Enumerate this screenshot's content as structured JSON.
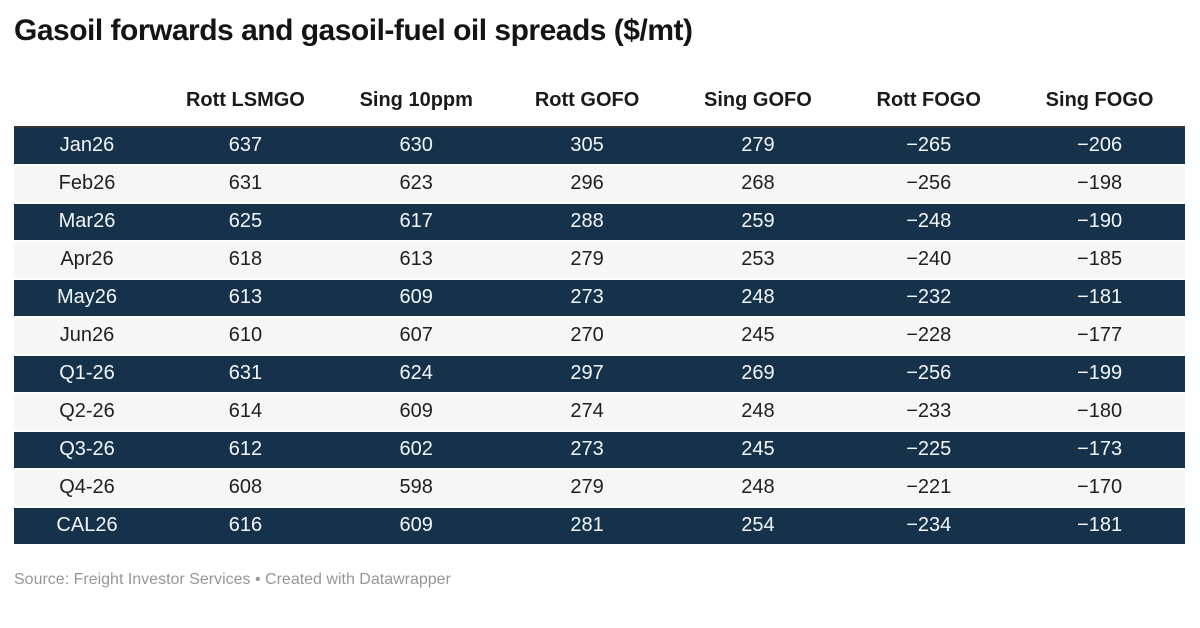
{
  "title": "Gasoil forwards and gasoil-fuel oil spreads ($/mt)",
  "table": {
    "columns": [
      "",
      "Rott LSMGO",
      "Sing 10ppm",
      "Rott GOFO",
      "Sing GOFO",
      "Rott FOGO",
      "Sing FOGO"
    ],
    "rows": [
      {
        "label": "Jan26",
        "values": [
          "637",
          "630",
          "305",
          "279",
          "−265",
          "−206"
        ]
      },
      {
        "label": "Feb26",
        "values": [
          "631",
          "623",
          "296",
          "268",
          "−256",
          "−198"
        ]
      },
      {
        "label": "Mar26",
        "values": [
          "625",
          "617",
          "288",
          "259",
          "−248",
          "−190"
        ]
      },
      {
        "label": "Apr26",
        "values": [
          "618",
          "613",
          "279",
          "253",
          "−240",
          "−185"
        ]
      },
      {
        "label": "May26",
        "values": [
          "613",
          "609",
          "273",
          "248",
          "−232",
          "−181"
        ]
      },
      {
        "label": "Jun26",
        "values": [
          "610",
          "607",
          "270",
          "245",
          "−228",
          "−177"
        ]
      },
      {
        "label": "Q1-26",
        "values": [
          "631",
          "624",
          "297",
          "269",
          "−256",
          "−199"
        ]
      },
      {
        "label": "Q2-26",
        "values": [
          "614",
          "609",
          "274",
          "248",
          "−233",
          "−180"
        ]
      },
      {
        "label": "Q3-26",
        "values": [
          "612",
          "602",
          "273",
          "245",
          "−225",
          "−173"
        ]
      },
      {
        "label": "Q4-26",
        "values": [
          "608",
          "598",
          "279",
          "248",
          "−221",
          "−170"
        ]
      },
      {
        "label": "CAL26",
        "values": [
          "616",
          "609",
          "281",
          "254",
          "−234",
          "−181"
        ]
      }
    ]
  },
  "footer": {
    "text": "Source: Freight Investor Services • Created with Datawrapper"
  },
  "colors": {
    "dark_row_bg": "#16324a",
    "light_row_bg": "#f6f6f6",
    "dark_row_text": "#f2f6f9",
    "light_row_text": "#1f1f1f",
    "heading_text": "#141414",
    "footer_text": "#979797",
    "top_rule": "#333333",
    "row_separator": "#ffffff"
  },
  "chart_data": {
    "type": "table",
    "title": "Gasoil forwards and gasoil-fuel oil spreads ($/mt)",
    "columns": [
      "",
      "Rott LSMGO",
      "Sing 10ppm",
      "Rott GOFO",
      "Sing GOFO",
      "Rott FOGO",
      "Sing FOGO"
    ],
    "rows": [
      [
        "Jan26",
        637,
        630,
        305,
        279,
        -265,
        -206
      ],
      [
        "Feb26",
        631,
        623,
        296,
        268,
        -256,
        -198
      ],
      [
        "Mar26",
        625,
        617,
        288,
        259,
        -248,
        -190
      ],
      [
        "Apr26",
        618,
        613,
        279,
        253,
        -240,
        -185
      ],
      [
        "May26",
        613,
        609,
        273,
        248,
        -232,
        -181
      ],
      [
        "Jun26",
        610,
        607,
        270,
        245,
        -228,
        -177
      ],
      [
        "Q1-26",
        631,
        624,
        297,
        269,
        -256,
        -199
      ],
      [
        "Q2-26",
        614,
        609,
        274,
        248,
        -233,
        -180
      ],
      [
        "Q3-26",
        612,
        602,
        273,
        245,
        -225,
        -173
      ],
      [
        "Q4-26",
        608,
        598,
        279,
        248,
        -221,
        -170
      ],
      [
        "CAL26",
        616,
        609,
        281,
        254,
        -234,
        -181
      ]
    ],
    "units": "$/mt",
    "layout": {
      "striped": true,
      "stripe_start": "dark",
      "alignment": "center",
      "source_note": "Source: Freight Investor Services • Created with Datawrapper"
    }
  }
}
